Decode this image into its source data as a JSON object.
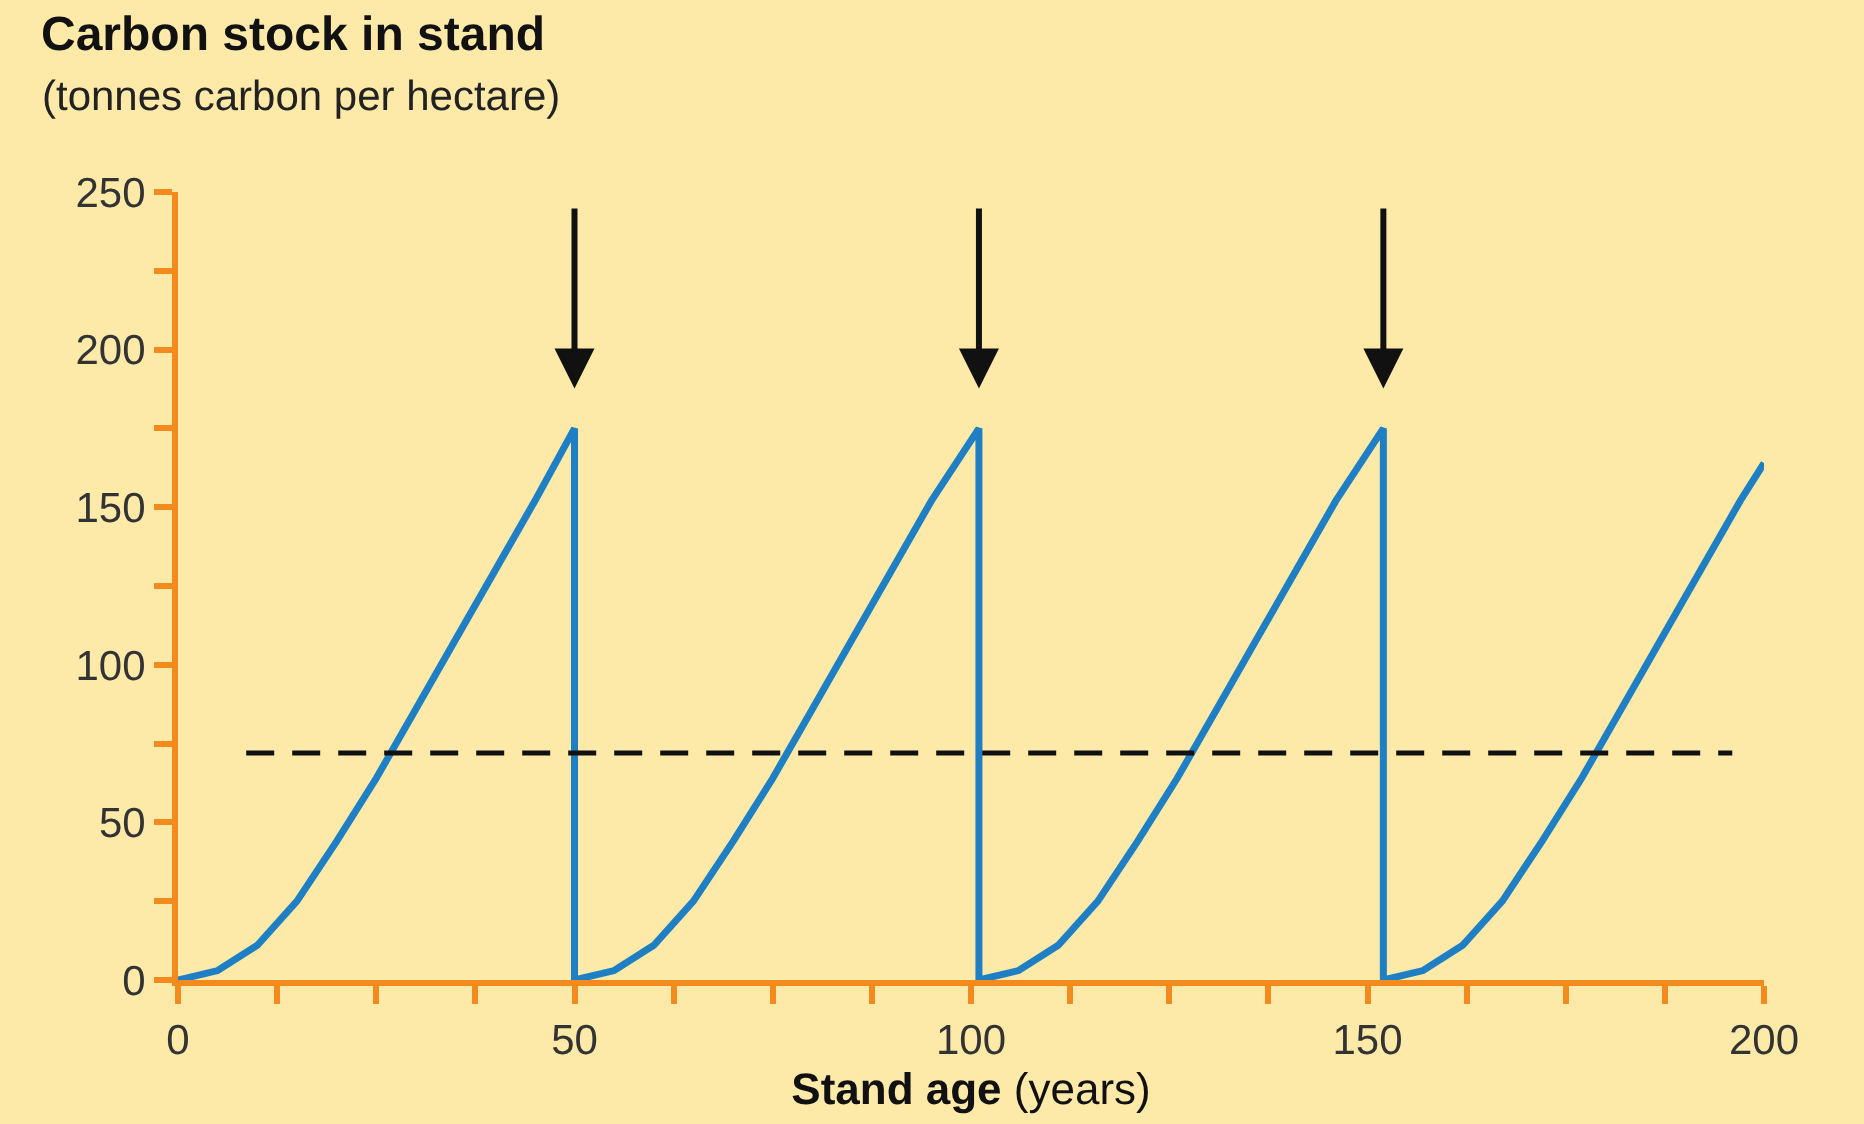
{
  "chart_data": {
    "type": "line",
    "title": "Carbon stock in stand",
    "subtitle": "(tonnes carbon per hectare)",
    "xlabel": "Stand age (years)",
    "x": [
      0,
      5,
      10,
      15,
      20,
      25,
      30,
      35,
      40,
      45,
      50,
      50,
      55,
      60,
      65,
      70,
      75,
      80,
      85,
      90,
      95,
      101,
      101,
      106,
      111,
      116,
      121,
      126,
      131,
      136,
      141,
      146,
      152,
      152,
      157,
      162,
      167,
      172,
      177,
      182,
      187,
      192,
      197,
      200
    ],
    "series": [
      {
        "color": "#1f7fc4",
        "values": [
          0,
          3,
          11,
          25,
          44,
          64,
          86,
          108,
          130,
          152,
          175,
          0,
          3,
          11,
          25,
          44,
          64,
          86,
          108,
          130,
          152,
          175,
          0,
          3,
          11,
          25,
          44,
          64,
          86,
          108,
          130,
          152,
          175,
          0,
          3,
          11,
          25,
          44,
          64,
          86,
          108,
          130,
          152,
          164
        ]
      }
    ],
    "xlim": [
      0,
      200
    ],
    "xticks": [
      0,
      {
        "value": 12.5,
        "label": null
      },
      {
        "value": 25,
        "label": null
      },
      {
        "value": 37.5,
        "label": null
      },
      50,
      {
        "value": 62.5,
        "label": null
      },
      {
        "value": 75,
        "label": null
      },
      {
        "value": 87.5,
        "label": null
      },
      100,
      {
        "value": 112.5,
        "label": null
      },
      {
        "value": 125,
        "label": null
      },
      {
        "value": 137.5,
        "label": null
      },
      150,
      {
        "value": 162.5,
        "label": null
      },
      {
        "value": 175,
        "label": null
      },
      {
        "value": 187.5,
        "label": null
      },
      200
    ],
    "ylim": [
      0,
      250
    ],
    "yticks": [
      0,
      {
        "value": 25,
        "label": null
      },
      50,
      {
        "value": 75,
        "label": null
      },
      100,
      {
        "value": 125,
        "label": null
      },
      150,
      {
        "value": 175,
        "label": null
      },
      200,
      {
        "value": 225,
        "label": null
      },
      250
    ],
    "ref_lines": [
      {
        "axis": "y",
        "value": 72,
        "color": "#111111",
        "line_style": "dashed"
      }
    ],
    "marker": "none",
    "line_style": "solid"
  }
}
